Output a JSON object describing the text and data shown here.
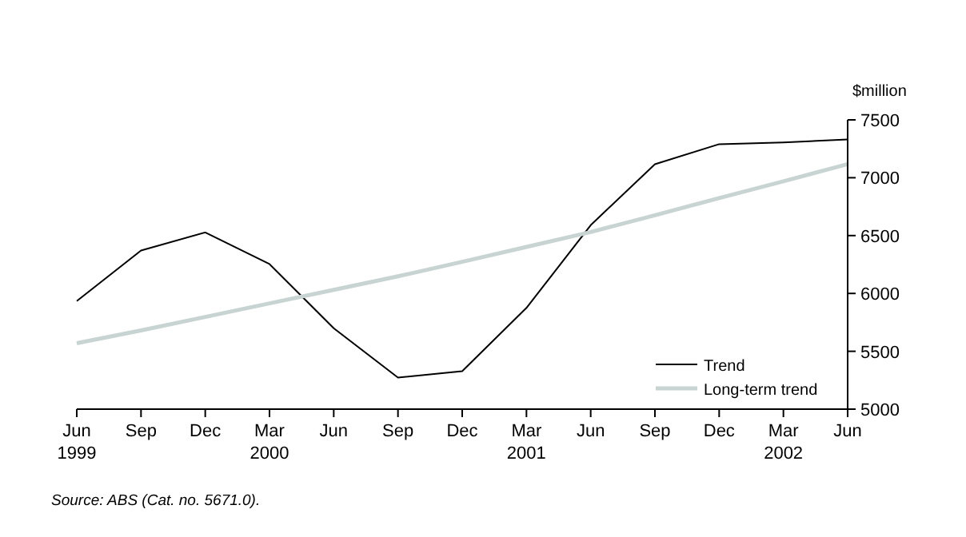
{
  "chart_data": {
    "type": "line",
    "ylabel": "$million",
    "categories": [
      "Jun\n1999",
      "Sep",
      "Dec",
      "Mar\n2000",
      "Jun",
      "Sep",
      "Dec",
      "Mar\n2001",
      "Jun",
      "Sep",
      "Dec",
      "Mar\n2002",
      "Jun"
    ],
    "series": [
      {
        "name": "Trend",
        "color": "#000000",
        "values": [
          5934,
          6371,
          6527,
          6254,
          5699,
          5273,
          5328,
          5875,
          6590,
          7117,
          7290,
          7305,
          7330
        ]
      },
      {
        "name": "Long-term trend",
        "color": "#c8d4d2",
        "values": [
          5570,
          5680,
          5797,
          5914,
          6031,
          6148,
          6273,
          6402,
          6531,
          6676,
          6824,
          6969,
          7117
        ]
      }
    ],
    "ylim": [
      5000,
      7500
    ],
    "yticks": [
      5000,
      5500,
      6000,
      6500,
      7000,
      7500
    ],
    "legend": "bottom right",
    "annotations": [
      "Source: ABS (Cat. no. 5671.0)."
    ]
  }
}
